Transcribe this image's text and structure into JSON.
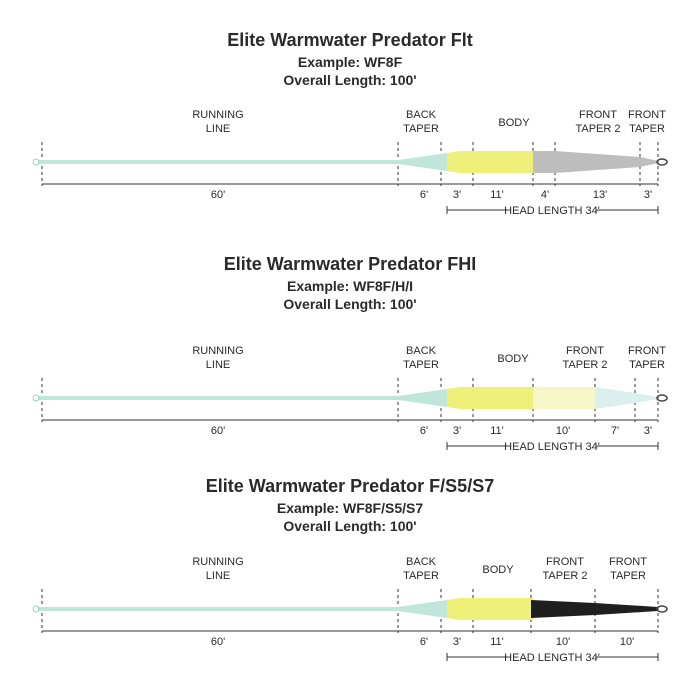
{
  "diagrams": [
    {
      "title": "Elite Warmwater Predator Flt",
      "example": "Example: WF8F",
      "length": "Overall Length: 100'",
      "sections": [
        {
          "lines": [
            "RUNNING",
            "LINE"
          ]
        },
        {
          "lines": [
            "BACK",
            "TAPER"
          ]
        },
        {
          "lines": [
            "BODY"
          ]
        },
        {
          "lines": [
            "FRONT",
            "TAPER 2"
          ]
        },
        {
          "lines": [
            "FRONT",
            "TAPER"
          ]
        }
      ],
      "dimensions": [
        "60'",
        "6'",
        "3'",
        "11'",
        "4'",
        "13'",
        "3'"
      ],
      "head_length": "HEAD LENGTH 34'"
    },
    {
      "title": "Elite Warmwater Predator FHI",
      "example": "Example: WF8F/H/I",
      "length": "Overall Length: 100'",
      "sections": [
        {
          "lines": [
            "RUNNING",
            "LINE"
          ]
        },
        {
          "lines": [
            "BACK",
            "TAPER"
          ]
        },
        {
          "lines": [
            "BODY"
          ]
        },
        {
          "lines": [
            "FRONT",
            "TAPER 2"
          ]
        },
        {
          "lines": [
            "FRONT",
            "TAPER"
          ]
        }
      ],
      "dimensions": [
        "60'",
        "6'",
        "3'",
        "11'",
        "10'",
        "7'",
        "3'"
      ],
      "head_length": "HEAD LENGTH 34'"
    },
    {
      "title": "Elite Warmwater Predator F/S5/S7",
      "example": "Example: WF8F/S5/S7",
      "length": "Overall Length: 100'",
      "sections": [
        {
          "lines": [
            "RUNNING",
            "LINE"
          ]
        },
        {
          "lines": [
            "BACK",
            "TAPER"
          ]
        },
        {
          "lines": [
            "BODY"
          ]
        },
        {
          "lines": [
            "FRONT",
            "TAPER 2"
          ]
        },
        {
          "lines": [
            "FRONT",
            "TAPER"
          ]
        }
      ],
      "dimensions": [
        "60'",
        "6'",
        "3'",
        "11'",
        "10'",
        "10'"
      ],
      "head_length": "HEAD LENGTH 34'"
    }
  ]
}
